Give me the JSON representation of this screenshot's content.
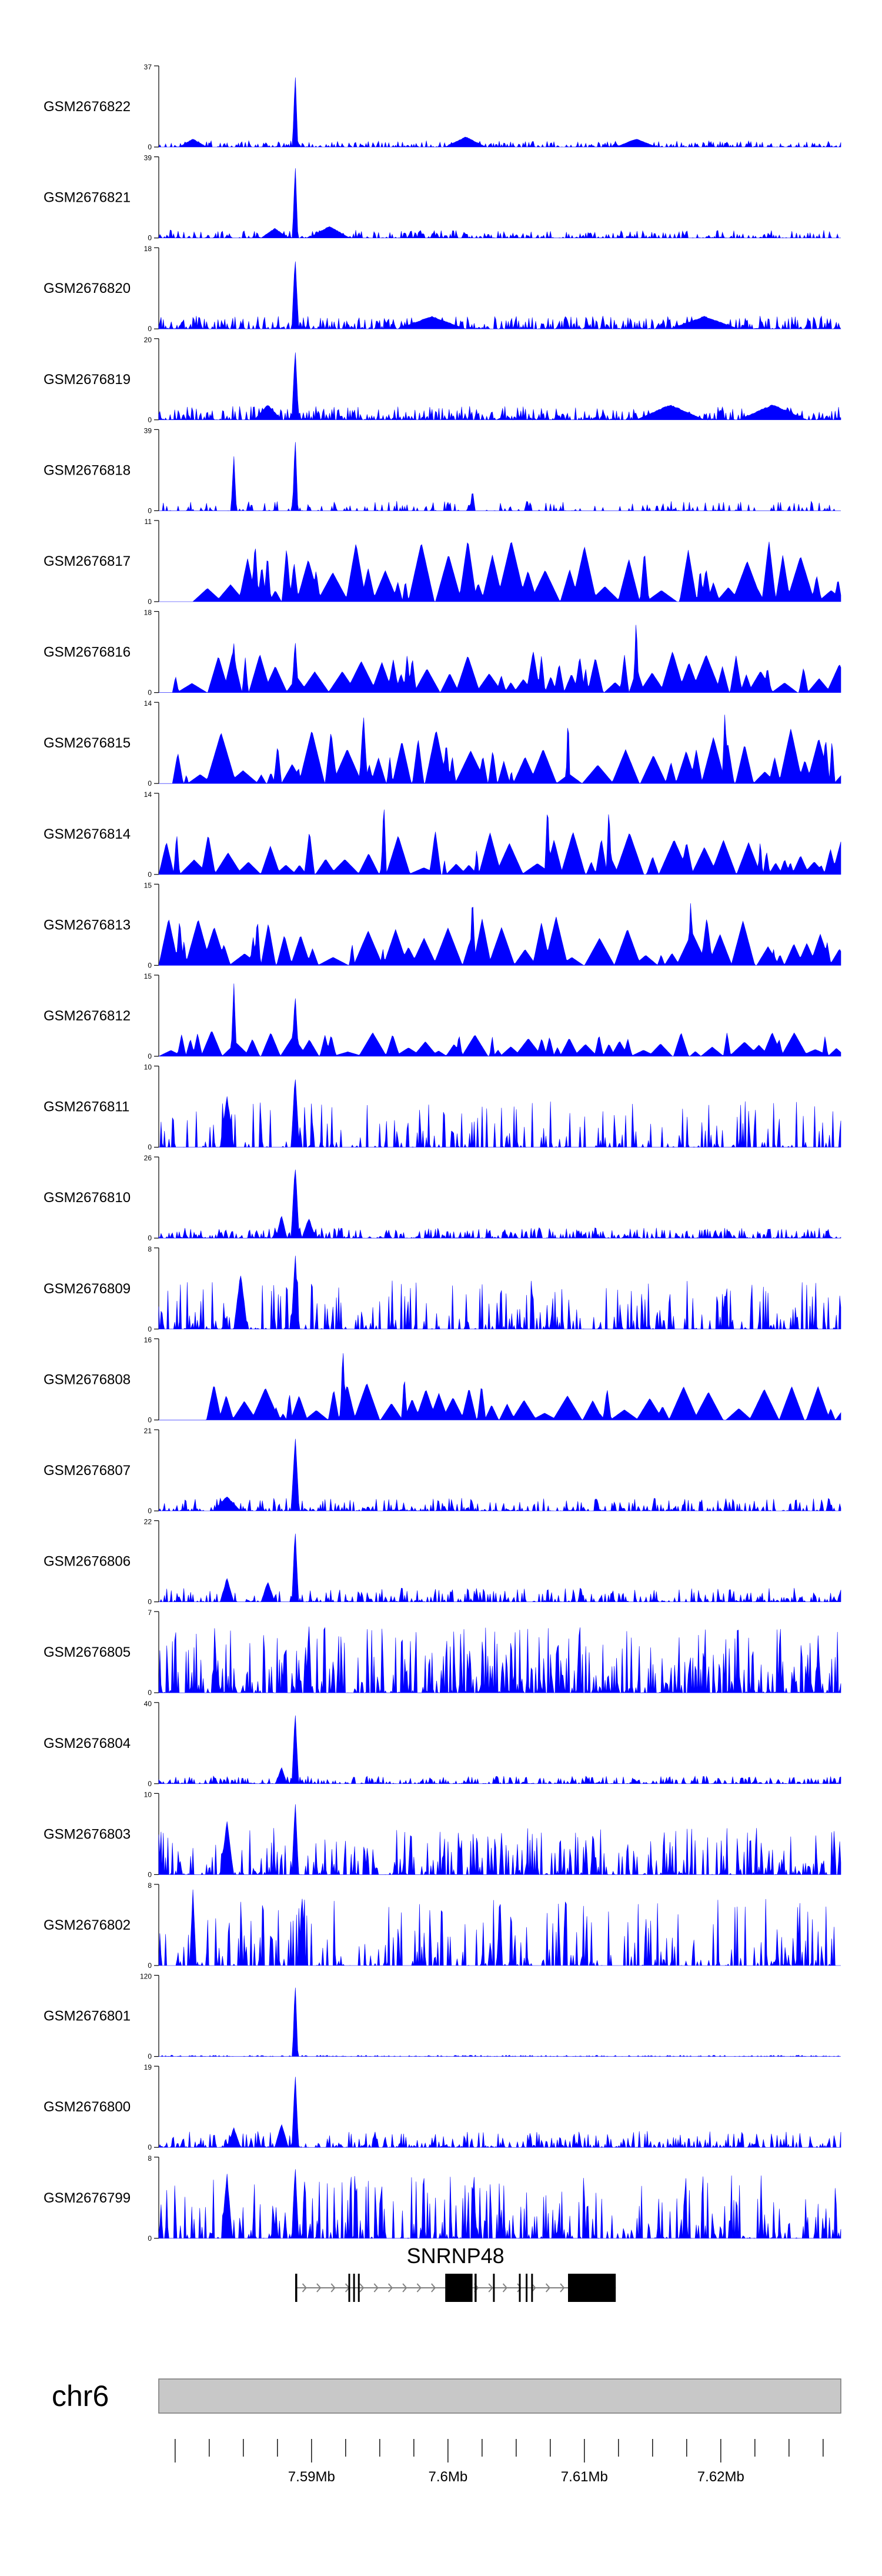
{
  "chart_data": {
    "type": "area",
    "title": "",
    "genome": {
      "chromosome": "chr6",
      "view_range_mb": [
        7.5788,
        7.6288
      ],
      "axis_ticks_mb": [
        7.59,
        7.6,
        7.61,
        7.62
      ],
      "axis_tick_labels": [
        "7.59Mb",
        "7.6Mb",
        "7.61Mb",
        "7.62Mb"
      ]
    },
    "gene": {
      "name": "SNRNP48",
      "strand": "+",
      "start_mb": 7.5888,
      "end_mb": 7.6123,
      "exons_mb": [
        [
          7.5888,
          7.58895
        ],
        [
          7.5927,
          7.5928
        ],
        [
          7.59305,
          7.59315
        ],
        [
          7.5934,
          7.5935
        ],
        [
          7.5998,
          7.6018
        ],
        [
          7.60195,
          7.6021
        ],
        [
          7.6033,
          7.6034
        ],
        [
          7.6052,
          7.6053
        ],
        [
          7.6057,
          7.6058
        ],
        [
          7.6061,
          7.6062
        ],
        [
          7.6088,
          7.6123
        ]
      ]
    },
    "series": [
      {
        "name": "GSM2676822",
        "ymax": 37,
        "peaks": [
          [
            0.2,
            37,
            0.004
          ],
          [
            0.05,
            4,
            0.02
          ],
          [
            0.45,
            5,
            0.03
          ],
          [
            0.7,
            4,
            0.03
          ]
        ],
        "noise": 3,
        "density": 0.7,
        "seed": 22
      },
      {
        "name": "GSM2676821",
        "ymax": 39,
        "peaks": [
          [
            0.2,
            39,
            0.004
          ],
          [
            0.17,
            5,
            0.02
          ],
          [
            0.25,
            6,
            0.03
          ]
        ],
        "noise": 4,
        "density": 0.7,
        "seed": 21
      },
      {
        "name": "GSM2676820",
        "ymax": 18,
        "peaks": [
          [
            0.2,
            18,
            0.005
          ],
          [
            0.4,
            3,
            0.05
          ],
          [
            0.8,
            3,
            0.05
          ]
        ],
        "noise": 3,
        "density": 0.8,
        "seed": 20
      },
      {
        "name": "GSM2676819",
        "ymax": 20,
        "peaks": [
          [
            0.2,
            20,
            0.005
          ],
          [
            0.16,
            4,
            0.02
          ],
          [
            0.75,
            4,
            0.05
          ],
          [
            0.9,
            4,
            0.05
          ]
        ],
        "noise": 3.5,
        "density": 0.85,
        "seed": 19
      },
      {
        "name": "GSM2676818",
        "ymax": 39,
        "peaks": [
          [
            0.2,
            39,
            0.004
          ],
          [
            0.11,
            30,
            0.004
          ],
          [
            0.46,
            11,
            0.004
          ],
          [
            0.54,
            6,
            0.004
          ]
        ],
        "noise": 5,
        "density": 0.35,
        "seed": 18
      },
      {
        "name": "GSM2676817",
        "ymax": 11,
        "peaks": [],
        "noise": 9,
        "density": 0.12,
        "seed": 17,
        "sparse": true,
        "start": 0.05
      },
      {
        "name": "GSM2676816",
        "ymax": 18,
        "peaks": [
          [
            0.7,
            18,
            0.004
          ],
          [
            0.11,
            12,
            0.005
          ],
          [
            0.2,
            13,
            0.005
          ]
        ],
        "noise": 10,
        "density": 0.14,
        "seed": 16,
        "sparse": true,
        "start": 0.02
      },
      {
        "name": "GSM2676815",
        "ymax": 14,
        "peaks": [
          [
            0.3,
            13,
            0.006
          ],
          [
            0.6,
            14,
            0.003
          ],
          [
            0.83,
            14,
            0.004
          ]
        ],
        "noise": 10,
        "density": 0.1,
        "seed": 15,
        "sparse": true,
        "start": 0.02
      },
      {
        "name": "GSM2676814",
        "ymax": 14,
        "peaks": [
          [
            0.33,
            14,
            0.004
          ],
          [
            0.57,
            14,
            0.004
          ],
          [
            0.66,
            13,
            0.004
          ]
        ],
        "noise": 8,
        "density": 0.2,
        "seed": 14,
        "sparse": true,
        "start": 0.0
      },
      {
        "name": "GSM2676813",
        "ymax": 15,
        "peaks": [
          [
            0.46,
            15,
            0.004
          ],
          [
            0.78,
            14,
            0.004
          ]
        ],
        "noise": 10,
        "density": 0.14,
        "seed": 13,
        "sparse": true,
        "start": 0.0
      },
      {
        "name": "GSM2676812",
        "ymax": 15,
        "peaks": [
          [
            0.11,
            15,
            0.004
          ],
          [
            0.2,
            13,
            0.005
          ]
        ],
        "noise": 5,
        "density": 0.4,
        "seed": 12,
        "sparse": true,
        "start": 0.0
      },
      {
        "name": "GSM2676811",
        "ymax": 10,
        "peaks": [
          [
            0.2,
            10,
            0.006
          ],
          [
            0.1,
            7,
            0.01
          ]
        ],
        "noise": 6,
        "density": 0.35,
        "seed": 11,
        "start": 0.0
      },
      {
        "name": "GSM2676810",
        "ymax": 26,
        "peaks": [
          [
            0.2,
            26,
            0.006
          ],
          [
            0.18,
            8,
            0.008
          ],
          [
            0.22,
            7,
            0.01
          ]
        ],
        "noise": 3.5,
        "density": 0.8,
        "seed": 10,
        "start": 0.0
      },
      {
        "name": "GSM2676809",
        "ymax": 8,
        "peaks": [
          [
            0.2,
            8,
            0.006
          ],
          [
            0.12,
            6,
            0.01
          ]
        ],
        "noise": 5,
        "density": 0.45,
        "seed": 9,
        "start": 0.0
      },
      {
        "name": "GSM2676808",
        "ymax": 16,
        "peaks": [
          [
            0.27,
            16,
            0.004
          ],
          [
            0.36,
            10,
            0.004
          ]
        ],
        "noise": 8,
        "density": 0.18,
        "seed": 8,
        "sparse": true,
        "start": 0.07
      },
      {
        "name": "GSM2676807",
        "ymax": 21,
        "peaks": [
          [
            0.2,
            21,
            0.006
          ],
          [
            0.1,
            4,
            0.02
          ]
        ],
        "noise": 3.5,
        "density": 0.7,
        "seed": 7,
        "start": 0.0
      },
      {
        "name": "GSM2676806",
        "ymax": 22,
        "peaks": [
          [
            0.2,
            22,
            0.005
          ],
          [
            0.1,
            7,
            0.01
          ],
          [
            0.16,
            6,
            0.01
          ]
        ],
        "noise": 4,
        "density": 0.6,
        "seed": 6,
        "start": 0.0
      },
      {
        "name": "GSM2676805",
        "ymax": 7,
        "peaks": [
          [
            0.22,
            7,
            0.004
          ]
        ],
        "noise": 6,
        "density": 0.7,
        "seed": 5,
        "start": 0.0
      },
      {
        "name": "GSM2676804",
        "ymax": 40,
        "peaks": [
          [
            0.2,
            40,
            0.005
          ],
          [
            0.18,
            9,
            0.008
          ]
        ],
        "noise": 4,
        "density": 0.7,
        "seed": 4,
        "start": 0.0
      },
      {
        "name": "GSM2676803",
        "ymax": 10,
        "peaks": [
          [
            0.2,
            10,
            0.005
          ],
          [
            0.1,
            7,
            0.01
          ]
        ],
        "noise": 6,
        "density": 0.55,
        "seed": 3,
        "start": 0.0
      },
      {
        "name": "GSM2676802",
        "ymax": 8,
        "peaks": [
          [
            0.05,
            8,
            0.005
          ],
          [
            0.21,
            8,
            0.005
          ],
          [
            0.5,
            8,
            0.004
          ]
        ],
        "noise": 7,
        "density": 0.4,
        "seed": 2,
        "start": 0.0
      },
      {
        "name": "GSM2676801",
        "ymax": 120,
        "peaks": [
          [
            0.2,
            120,
            0.004
          ]
        ],
        "noise": 2,
        "density": 0.6,
        "seed": 1,
        "start": 0.0
      },
      {
        "name": "GSM2676800",
        "ymax": 19,
        "peaks": [
          [
            0.2,
            19,
            0.005
          ],
          [
            0.11,
            5,
            0.01
          ],
          [
            0.18,
            6,
            0.01
          ]
        ],
        "noise": 4,
        "density": 0.65,
        "seed": 100,
        "start": 0.0
      },
      {
        "name": "GSM2676799",
        "ymax": 8,
        "peaks": [
          [
            0.2,
            8,
            0.005
          ],
          [
            0.1,
            7,
            0.008
          ]
        ],
        "noise": 6.5,
        "density": 0.5,
        "seed": 99,
        "start": 0.0
      }
    ]
  },
  "colors": {
    "track_fill": "#0000ff",
    "axis": "#000000",
    "gene": "#000000",
    "intron_arrows": "#808080",
    "ideogram_fill": "#c8c8c8",
    "ideogram_stroke": "#777777"
  }
}
